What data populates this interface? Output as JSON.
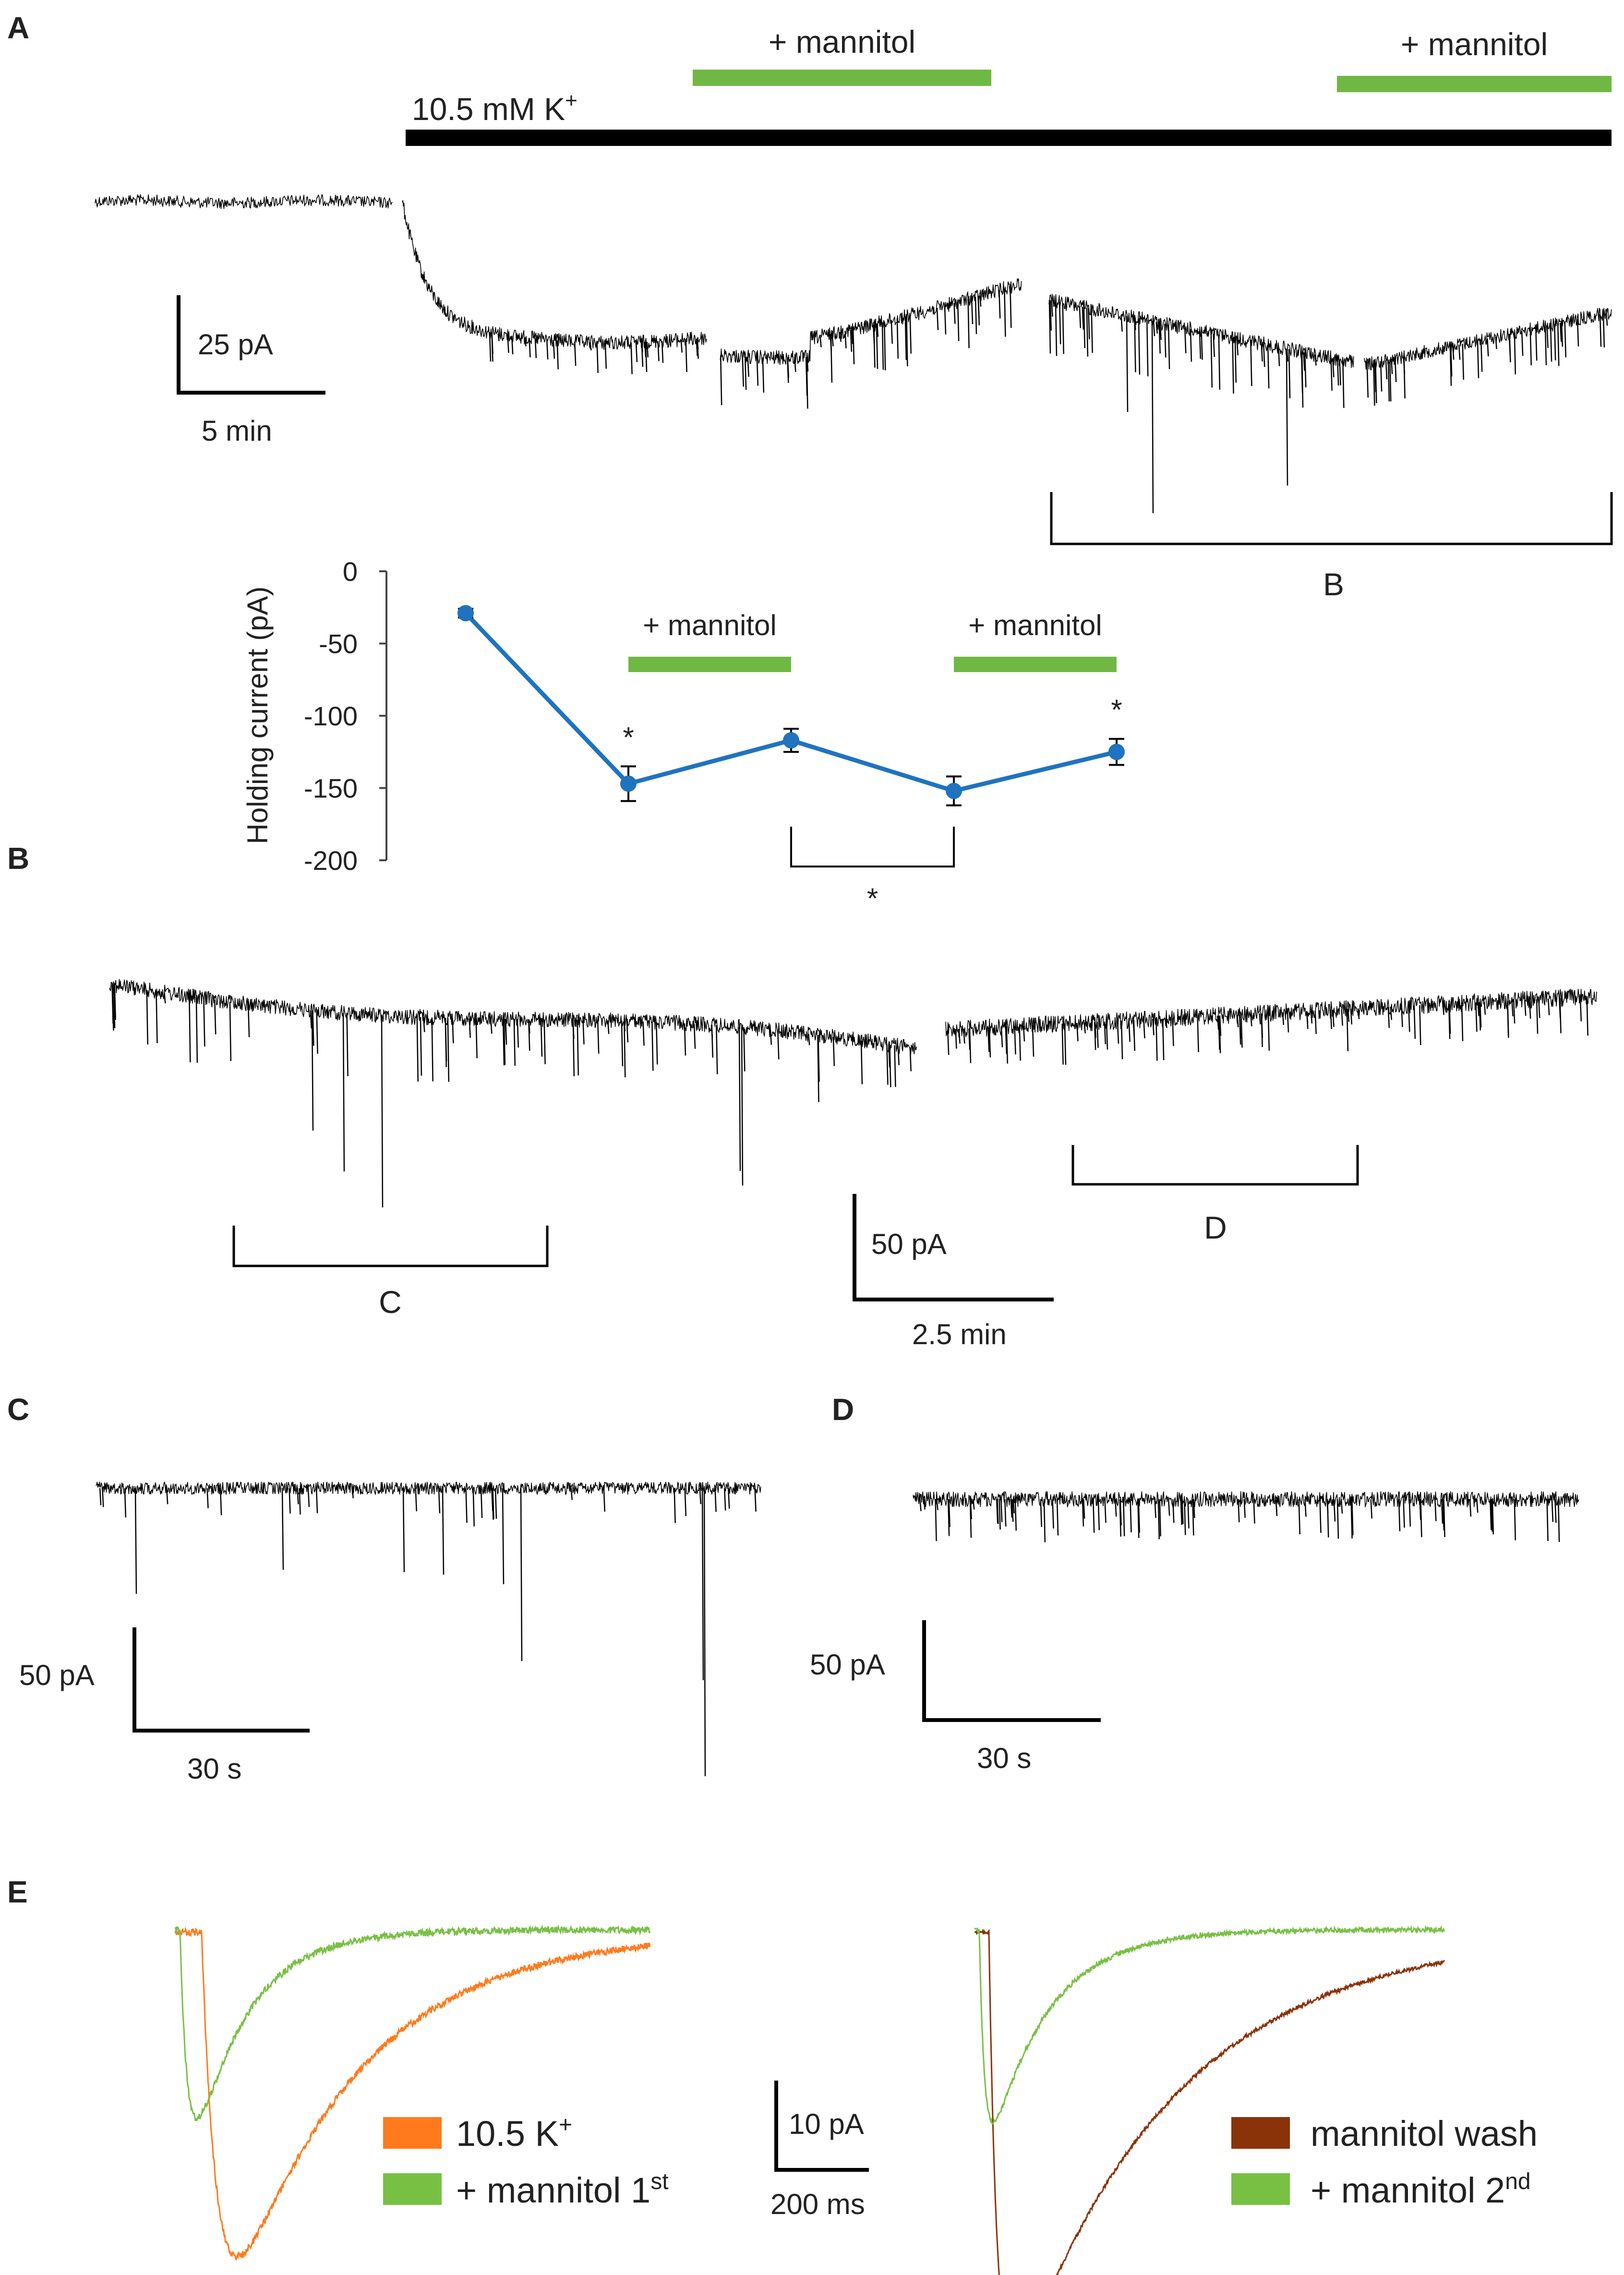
{
  "colors": {
    "trace": "#000000",
    "mannitol_bar": "#70b844",
    "k_bar": "#000000",
    "summary_line": "#1f73bf",
    "orange": "#ff7a1c",
    "brown": "#8a3208",
    "green_trace": "#78c044"
  },
  "panels": {
    "a": {
      "letter": "A",
      "mannitol_label_1": "+ mannitol",
      "mannitol_label_2": "+ mannitol",
      "k_label": "10.5 mM K",
      "k_sup": "+",
      "scale_y": "25 pA",
      "scale_x": "5 min",
      "bracket_label": "B"
    },
    "b": {
      "letter": "B",
      "bracket_c": "C",
      "bracket_d": "D",
      "scale_y": "50 pA",
      "scale_x": "2.5 min"
    },
    "c": {
      "letter": "C",
      "scale_y": "50 pA",
      "scale_x": "30 s"
    },
    "d": {
      "letter": "D",
      "scale_y": "50 pA",
      "scale_x": "30 s"
    },
    "e": {
      "letter": "E",
      "scale_y": "10 pA",
      "scale_x": "200 ms",
      "legend_left": [
        {
          "label": "10.5 K",
          "sup": "+",
          "color": "#ff7a1c"
        },
        {
          "label": "+ mannitol 1",
          "sup": "st",
          "color": "#78c044"
        }
      ],
      "legend_right": [
        {
          "label": "mannitol wash",
          "sup": "",
          "color": "#8a3208"
        },
        {
          "label": "+ mannitol 2",
          "sup": "nd",
          "color": "#78c044"
        }
      ]
    }
  },
  "chart_data": {
    "type": "line",
    "ylabel": "Holding current (pA)",
    "ylim": [
      -200,
      0
    ],
    "yticks": [
      "0",
      "-50",
      "-100",
      "-150",
      "-200"
    ],
    "series": [
      {
        "x": [
          1,
          2,
          3,
          4,
          5
        ],
        "values": [
          -29,
          -147,
          -117,
          -152,
          -125
        ],
        "errors": [
          3,
          12,
          8,
          10,
          9
        ]
      }
    ],
    "treatment_bars": [
      {
        "label": "+ mannitol",
        "from": 2,
        "to": 3
      },
      {
        "label": "+ mannitol",
        "from": 4,
        "to": 5
      }
    ],
    "significance": [
      {
        "at": 2,
        "mark": "*"
      },
      {
        "at": 5,
        "mark": "*"
      },
      {
        "from": 3,
        "to": 4,
        "mark": "*"
      }
    ]
  }
}
